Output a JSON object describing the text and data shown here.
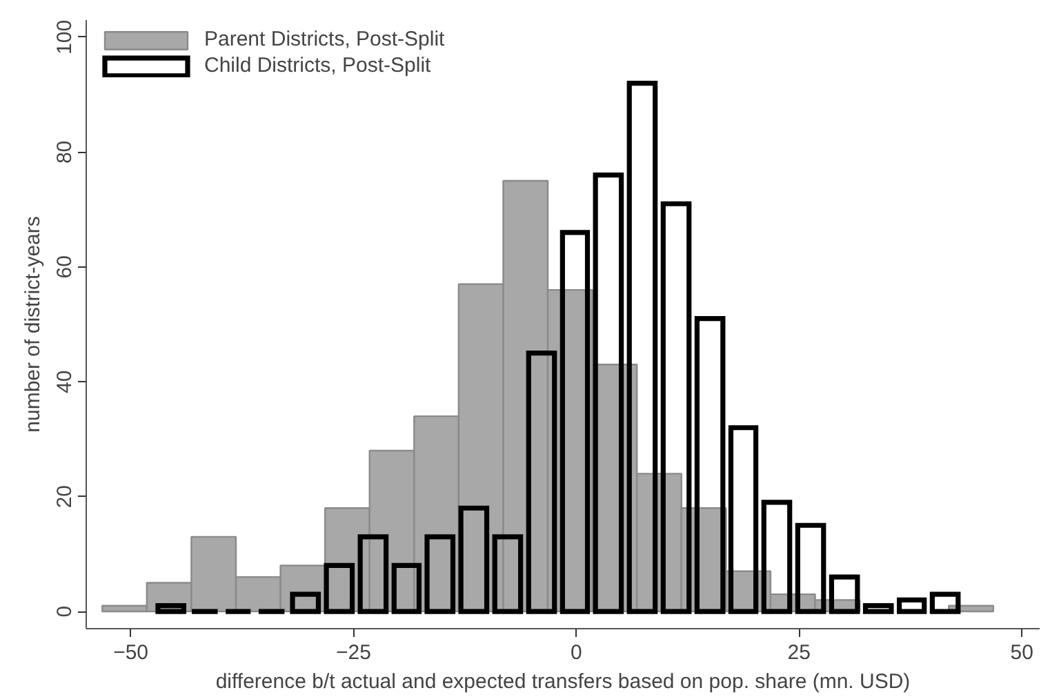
{
  "chart_data": {
    "type": "histogram",
    "xlabel": "difference b/t actual and expected transfers based on pop. share (mn. USD)",
    "ylabel": "number of district-years",
    "xlim": [
      -55,
      52
    ],
    "ylim": [
      -3,
      103
    ],
    "xticks": [
      -50,
      -25,
      0,
      25,
      50
    ],
    "yticks": [
      0,
      20,
      40,
      60,
      80,
      100
    ],
    "grid": false,
    "legend": "top left",
    "bins": [
      -53.2,
      -48.2,
      -43.2,
      -38.2,
      -33.2,
      -28.2,
      -23.2,
      -18.2,
      -13.2,
      -8.2,
      -3.2,
      1.8,
      6.8,
      11.8,
      16.8,
      21.8,
      26.8,
      31.8,
      36.8,
      41.8,
      46.8
    ],
    "series": [
      {
        "name": "Parent Districts, Post-Split",
        "color": "#a8a8a8",
        "values": [
          1,
          5,
          13,
          6,
          8,
          18,
          28,
          34,
          57,
          75,
          56,
          43,
          24,
          18,
          7,
          3,
          2,
          null,
          null,
          1
        ]
      },
      {
        "name": "Child Districts, Post-Split",
        "color": "#000000",
        "bins": [
          -47.4,
          -43.6,
          -39.8,
          -36.1,
          -32.3,
          -28.5,
          -24.7,
          -20.9,
          -17.2,
          -13.4,
          -9.6,
          -5.8,
          -2.0,
          1.7,
          5.5,
          9.3,
          13.1,
          16.9,
          20.6,
          24.4,
          28.2,
          32.0,
          35.8,
          39.5,
          43.3
        ],
        "values": [
          1,
          0,
          0,
          0,
          3,
          8,
          13,
          8,
          13,
          18,
          13,
          45,
          66,
          76,
          92,
          71,
          51,
          32,
          19,
          15,
          6,
          1,
          2,
          3
        ]
      }
    ]
  }
}
